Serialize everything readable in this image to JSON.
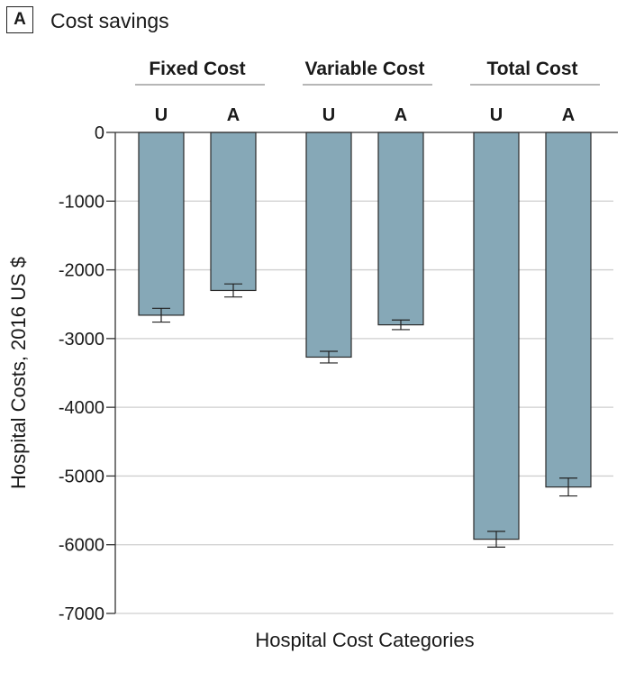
{
  "panel_label": "A",
  "chart_data": {
    "type": "bar",
    "title": "Cost savings",
    "xlabel": "Hospital Cost Categories",
    "ylabel": "Hospital Costs, 2016 US $",
    "ylim": [
      -7000,
      0
    ],
    "yticks": [
      0,
      -1000,
      -2000,
      -3000,
      -4000,
      -5000,
      -6000,
      -7000
    ],
    "grid": true,
    "groups": [
      {
        "name": "Fixed Cost",
        "bars": [
          {
            "label": "U",
            "value": -2660,
            "error": 100
          },
          {
            "label": "A",
            "value": -2300,
            "error": 95
          }
        ]
      },
      {
        "name": "Variable Cost",
        "bars": [
          {
            "label": "U",
            "value": -3270,
            "error": 85
          },
          {
            "label": "A",
            "value": -2800,
            "error": 70
          }
        ]
      },
      {
        "name": "Total Cost",
        "bars": [
          {
            "label": "U",
            "value": -5920,
            "error": 115
          },
          {
            "label": "A",
            "value": -5160,
            "error": 130
          }
        ]
      }
    ],
    "colors": {
      "bar": "#86a8b7",
      "bar_edge": "#2b2b2b",
      "grid": "#cfcfcf",
      "axis": "#333333",
      "group_rule": "#8a8a8a"
    }
  }
}
